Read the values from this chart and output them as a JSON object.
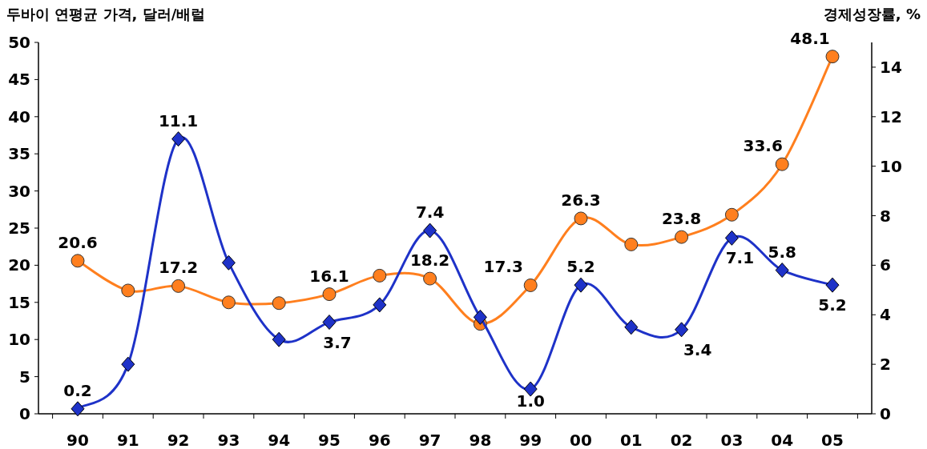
{
  "chart_data": {
    "type": "line",
    "ylabel": "두바이 연평균 가격, 달러/배럴",
    "y2label": "경제성장률, %",
    "categories": [
      "90",
      "91",
      "92",
      "93",
      "94",
      "95",
      "96",
      "97",
      "98",
      "99",
      "00",
      "01",
      "02",
      "03",
      "04",
      "05"
    ],
    "ylim": [
      0,
      50
    ],
    "yticks": [
      0,
      5,
      10,
      15,
      20,
      25,
      30,
      35,
      40,
      45,
      50
    ],
    "y2lim": [
      0,
      15
    ],
    "y2ticks": [
      0,
      2,
      4,
      6,
      8,
      10,
      12,
      14
    ],
    "grid": false,
    "line_style": "solid",
    "series": [
      {
        "color": "#ff7f1e",
        "marker": "circle",
        "values": [
          20.6,
          16.6,
          17.2,
          15.0,
          14.9,
          16.1,
          18.6,
          18.2,
          12.1,
          17.3,
          26.3,
          22.8,
          23.8,
          26.8,
          33.6,
          48.1
        ],
        "value_labels": [
          "20.6",
          null,
          "17.2",
          null,
          null,
          "16.1",
          null,
          "18.2",
          null,
          "17.3",
          "26.3",
          null,
          "23.8",
          null,
          "33.6",
          "48.1"
        ]
      },
      {
        "color": "#1e32c8",
        "marker": "diamond",
        "axis": "y2",
        "values": [
          0.2,
          2.0,
          11.1,
          6.1,
          3.0,
          3.7,
          4.4,
          7.4,
          3.9,
          1.0,
          5.2,
          3.5,
          3.4,
          7.1,
          5.8,
          5.2
        ],
        "value_labels": [
          "0.2",
          null,
          "11.1",
          null,
          null,
          "3.7",
          null,
          "7.4",
          null,
          "1.0",
          "5.2",
          null,
          "3.4",
          "7.1",
          "5.8",
          "5.2"
        ]
      }
    ]
  }
}
